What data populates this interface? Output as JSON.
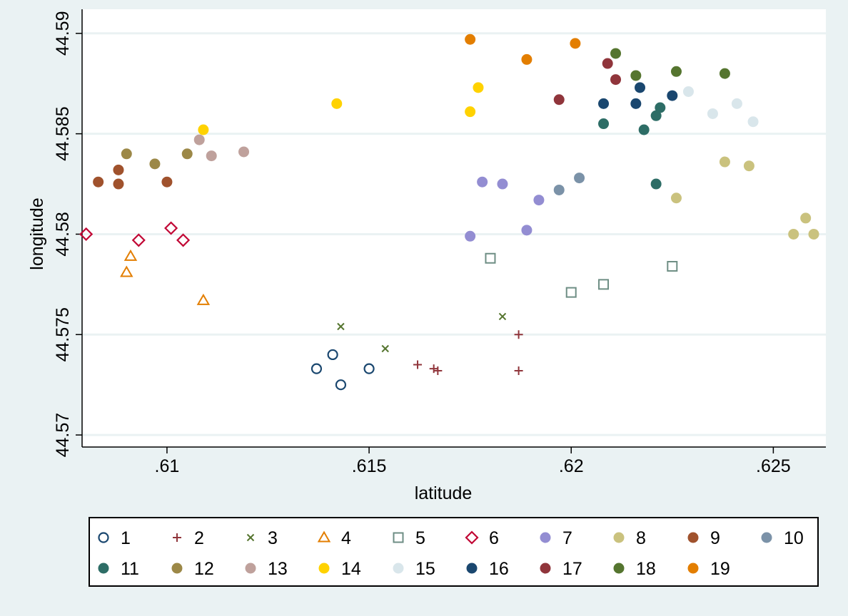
{
  "chart_data": {
    "type": "scatter",
    "xlabel": "latitude",
    "ylabel": "longitude",
    "xlim": [
      0.6079,
      0.6263
    ],
    "ylim": [
      44.5694,
      44.5912
    ],
    "x_ticks": [
      0.61,
      0.615,
      0.62,
      0.625
    ],
    "x_tick_labels": [
      ".61",
      ".615",
      ".62",
      ".625"
    ],
    "y_ticks": [
      44.57,
      44.575,
      44.58,
      44.585,
      44.59
    ],
    "y_tick_labels": [
      "44.57",
      "44.575",
      "44.58",
      "44.585",
      "44.59"
    ],
    "grid": true,
    "legend_position": "bottom",
    "colors": {
      "background": "#eaf2f3",
      "plot_area": "#ffffff",
      "grid": "#eaf2f3"
    },
    "series": [
      {
        "name": "1",
        "marker": "circle-hollow",
        "color": "#1a476f",
        "points": [
          [
            0.6137,
            44.5733
          ],
          [
            0.6141,
            44.574
          ],
          [
            0.6143,
            44.5725
          ],
          [
            0.615,
            44.5733
          ]
        ]
      },
      {
        "name": "2",
        "marker": "plus",
        "color": "#90353b",
        "points": [
          [
            0.6162,
            44.5735
          ],
          [
            0.6166,
            44.5733
          ],
          [
            0.6167,
            44.5732
          ],
          [
            0.6187,
            44.575
          ],
          [
            0.6187,
            44.5732
          ]
        ]
      },
      {
        "name": "3",
        "marker": "x",
        "color": "#55752f",
        "points": [
          [
            0.6143,
            44.5754
          ],
          [
            0.6154,
            44.5743
          ],
          [
            0.6183,
            44.5759
          ]
        ]
      },
      {
        "name": "4",
        "marker": "triangle-hollow",
        "color": "#e37e00",
        "points": [
          [
            0.6091,
            44.5789
          ],
          [
            0.609,
            44.5781
          ],
          [
            0.6109,
            44.5767
          ]
        ]
      },
      {
        "name": "5",
        "marker": "square-hollow",
        "color": "#6e8e84",
        "points": [
          [
            0.618,
            44.5788
          ],
          [
            0.62,
            44.5771
          ],
          [
            0.6208,
            44.5775
          ],
          [
            0.6225,
            44.5784
          ]
        ]
      },
      {
        "name": "6",
        "marker": "diamond-hollow",
        "color": "#c10534",
        "points": [
          [
            0.608,
            44.58
          ],
          [
            0.6093,
            44.5797
          ],
          [
            0.6101,
            44.5803
          ],
          [
            0.6104,
            44.5797
          ]
        ]
      },
      {
        "name": "7",
        "marker": "circle",
        "color": "#938dd2",
        "points": [
          [
            0.6175,
            44.5799
          ],
          [
            0.6178,
            44.5826
          ],
          [
            0.6183,
            44.5825
          ],
          [
            0.6189,
            44.5802
          ],
          [
            0.6192,
            44.5817
          ]
        ]
      },
      {
        "name": "8",
        "marker": "circle",
        "color": "#cac27e",
        "points": [
          [
            0.6226,
            44.5818
          ],
          [
            0.6238,
            44.5836
          ],
          [
            0.6244,
            44.5834
          ],
          [
            0.6255,
            44.58
          ],
          [
            0.6258,
            44.5808
          ],
          [
            0.626,
            44.58
          ]
        ]
      },
      {
        "name": "9",
        "marker": "circle",
        "color": "#a0522d",
        "points": [
          [
            0.6083,
            44.5826
          ],
          [
            0.6088,
            44.5825
          ],
          [
            0.6088,
            44.5832
          ],
          [
            0.61,
            44.5826
          ]
        ]
      },
      {
        "name": "10",
        "marker": "circle",
        "color": "#7b92a8",
        "points": [
          [
            0.6197,
            44.5822
          ],
          [
            0.6202,
            44.5828
          ]
        ]
      },
      {
        "name": "11",
        "marker": "circle",
        "color": "#2d6d66",
        "points": [
          [
            0.6208,
            44.5855
          ],
          [
            0.6218,
            44.5852
          ],
          [
            0.6221,
            44.5825
          ],
          [
            0.6221,
            44.5859
          ],
          [
            0.6222,
            44.5863
          ]
        ]
      },
      {
        "name": "12",
        "marker": "circle",
        "color": "#9c8847",
        "points": [
          [
            0.609,
            44.584
          ],
          [
            0.6097,
            44.5835
          ],
          [
            0.6105,
            44.584
          ]
        ]
      },
      {
        "name": "13",
        "marker": "circle",
        "color": "#bfa19c",
        "points": [
          [
            0.6108,
            44.5847
          ],
          [
            0.6111,
            44.5839
          ],
          [
            0.6119,
            44.5841
          ]
        ]
      },
      {
        "name": "14",
        "marker": "circle",
        "color": "#ffd200",
        "points": [
          [
            0.6109,
            44.5852
          ],
          [
            0.6142,
            44.5865
          ],
          [
            0.6175,
            44.5861
          ],
          [
            0.6177,
            44.5873
          ]
        ]
      },
      {
        "name": "15",
        "marker": "circle",
        "color": "#d9e6eb",
        "points": [
          [
            0.6229,
            44.5871
          ],
          [
            0.6235,
            44.586
          ],
          [
            0.6241,
            44.5865
          ],
          [
            0.6245,
            44.5856
          ]
        ]
      },
      {
        "name": "16",
        "marker": "circle",
        "color": "#1a476f",
        "points": [
          [
            0.6208,
            44.5865
          ],
          [
            0.6216,
            44.5865
          ],
          [
            0.6217,
            44.5873
          ],
          [
            0.6225,
            44.5869
          ]
        ]
      },
      {
        "name": "17",
        "marker": "circle",
        "color": "#90353b",
        "points": [
          [
            0.6197,
            44.5867
          ],
          [
            0.6209,
            44.5885
          ],
          [
            0.6211,
            44.5877
          ]
        ]
      },
      {
        "name": "18",
        "marker": "circle",
        "color": "#55752f",
        "points": [
          [
            0.6211,
            44.589
          ],
          [
            0.6216,
            44.5879
          ],
          [
            0.6226,
            44.5881
          ],
          [
            0.6238,
            44.588
          ]
        ]
      },
      {
        "name": "19",
        "marker": "circle",
        "color": "#e37e00",
        "points": [
          [
            0.6175,
            44.5897
          ],
          [
            0.6189,
            44.5887
          ],
          [
            0.6201,
            44.5895
          ]
        ]
      }
    ]
  }
}
